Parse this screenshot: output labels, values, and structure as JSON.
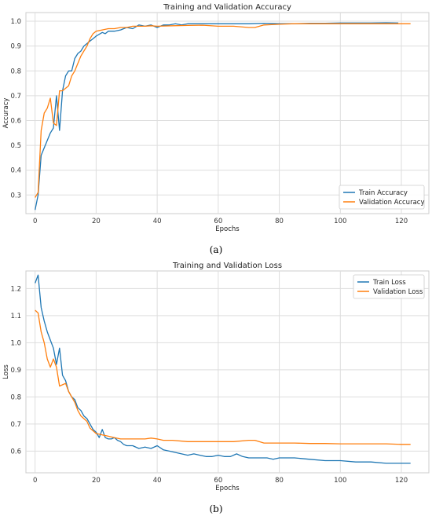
{
  "colors": {
    "train": "#1f77b4",
    "validation": "#ff7f0e",
    "grid": "#dddddd"
  },
  "chart_data": [
    {
      "type": "line",
      "title": "Training and Validation Accuracy",
      "xlabel": "Epochs",
      "ylabel": "Accuracy",
      "xlim": [
        -3,
        129
      ],
      "ylim": [
        0.225,
        1.035
      ],
      "xticks": [
        0,
        20,
        40,
        60,
        80,
        100,
        120
      ],
      "yticks": [
        0.3,
        0.4,
        0.5,
        0.6,
        0.7,
        0.8,
        0.9,
        1.0
      ],
      "ytick_labels": [
        "0.3",
        "0.4",
        "0.5",
        "0.6",
        "0.7",
        "0.8",
        "0.9",
        "1.0"
      ],
      "grid": true,
      "legend": "bottom-right",
      "caption": "(a)",
      "series": [
        {
          "name": "Train Accuracy",
          "color_key": "train",
          "points": [
            [
              0,
              0.24
            ],
            [
              1,
              0.3
            ],
            [
              2,
              0.46
            ],
            [
              3,
              0.49
            ],
            [
              4,
              0.52
            ],
            [
              5,
              0.55
            ],
            [
              6,
              0.57
            ],
            [
              7,
              0.7
            ],
            [
              8,
              0.56
            ],
            [
              9,
              0.72
            ],
            [
              10,
              0.78
            ],
            [
              11,
              0.8
            ],
            [
              12,
              0.8
            ],
            [
              13,
              0.85
            ],
            [
              14,
              0.87
            ],
            [
              15,
              0.88
            ],
            [
              16,
              0.9
            ],
            [
              17,
              0.91
            ],
            [
              18,
              0.92
            ],
            [
              19,
              0.93
            ],
            [
              20,
              0.94
            ],
            [
              22,
              0.955
            ],
            [
              23,
              0.95
            ],
            [
              24,
              0.96
            ],
            [
              26,
              0.96
            ],
            [
              28,
              0.965
            ],
            [
              30,
              0.975
            ],
            [
              32,
              0.97
            ],
            [
              34,
              0.985
            ],
            [
              36,
              0.98
            ],
            [
              38,
              0.985
            ],
            [
              40,
              0.975
            ],
            [
              42,
              0.985
            ],
            [
              44,
              0.985
            ],
            [
              46,
              0.99
            ],
            [
              48,
              0.985
            ],
            [
              50,
              0.99
            ],
            [
              55,
              0.99
            ],
            [
              60,
              0.99
            ],
            [
              65,
              0.99
            ],
            [
              70,
              0.99
            ],
            [
              75,
              0.992
            ],
            [
              80,
              0.99
            ],
            [
              85,
              0.99
            ],
            [
              90,
              0.992
            ],
            [
              95,
              0.992
            ],
            [
              100,
              0.993
            ],
            [
              105,
              0.993
            ],
            [
              110,
              0.993
            ],
            [
              115,
              0.994
            ],
            [
              119,
              0.993
            ]
          ]
        },
        {
          "name": "Validation Accuracy",
          "color_key": "validation",
          "points": [
            [
              0,
              0.29
            ],
            [
              1,
              0.31
            ],
            [
              2,
              0.56
            ],
            [
              3,
              0.63
            ],
            [
              4,
              0.65
            ],
            [
              5,
              0.69
            ],
            [
              6,
              0.59
            ],
            [
              7,
              0.58
            ],
            [
              8,
              0.72
            ],
            [
              9,
              0.72
            ],
            [
              10,
              0.73
            ],
            [
              11,
              0.74
            ],
            [
              12,
              0.78
            ],
            [
              13,
              0.8
            ],
            [
              14,
              0.83
            ],
            [
              15,
              0.86
            ],
            [
              16,
              0.88
            ],
            [
              17,
              0.9
            ],
            [
              18,
              0.93
            ],
            [
              19,
              0.95
            ],
            [
              20,
              0.96
            ],
            [
              22,
              0.965
            ],
            [
              24,
              0.97
            ],
            [
              26,
              0.97
            ],
            [
              28,
              0.975
            ],
            [
              30,
              0.975
            ],
            [
              32,
              0.98
            ],
            [
              34,
              0.98
            ],
            [
              36,
              0.98
            ],
            [
              38,
              0.982
            ],
            [
              40,
              0.98
            ],
            [
              45,
              0.982
            ],
            [
              50,
              0.983
            ],
            [
              55,
              0.984
            ],
            [
              60,
              0.98
            ],
            [
              65,
              0.98
            ],
            [
              70,
              0.975
            ],
            [
              72,
              0.975
            ],
            [
              75,
              0.985
            ],
            [
              80,
              0.988
            ],
            [
              85,
              0.99
            ],
            [
              90,
              0.99
            ],
            [
              95,
              0.99
            ],
            [
              100,
              0.99
            ],
            [
              105,
              0.99
            ],
            [
              110,
              0.99
            ],
            [
              115,
              0.99
            ],
            [
              120,
              0.99
            ],
            [
              123,
              0.99
            ]
          ]
        }
      ]
    },
    {
      "type": "line",
      "title": "Training and Validation Loss",
      "xlabel": "Epochs",
      "ylabel": "Loss",
      "xlim": [
        -3,
        129
      ],
      "ylim": [
        0.52,
        1.265
      ],
      "xticks": [
        0,
        20,
        40,
        60,
        80,
        100,
        120
      ],
      "yticks": [
        0.6,
        0.7,
        0.8,
        0.9,
        1.0,
        1.1,
        1.2
      ],
      "ytick_labels": [
        "0.6",
        "0.7",
        "0.8",
        "0.9",
        "1.0",
        "1.1",
        "1.2"
      ],
      "grid": true,
      "legend": "top-right",
      "caption": "(b)",
      "series": [
        {
          "name": "Train Loss",
          "color_key": "train",
          "points": [
            [
              0,
              1.22
            ],
            [
              1,
              1.25
            ],
            [
              2,
              1.13
            ],
            [
              3,
              1.08
            ],
            [
              4,
              1.04
            ],
            [
              5,
              1.01
            ],
            [
              6,
              0.98
            ],
            [
              7,
              0.92
            ],
            [
              8,
              0.98
            ],
            [
              9,
              0.88
            ],
            [
              10,
              0.86
            ],
            [
              11,
              0.82
            ],
            [
              12,
              0.8
            ],
            [
              13,
              0.79
            ],
            [
              14,
              0.76
            ],
            [
              15,
              0.75
            ],
            [
              16,
              0.73
            ],
            [
              17,
              0.72
            ],
            [
              18,
              0.7
            ],
            [
              19,
              0.68
            ],
            [
              20,
              0.67
            ],
            [
              21,
              0.65
            ],
            [
              22,
              0.68
            ],
            [
              23,
              0.65
            ],
            [
              24,
              0.645
            ],
            [
              25,
              0.645
            ],
            [
              26,
              0.65
            ],
            [
              27,
              0.64
            ],
            [
              28,
              0.635
            ],
            [
              29,
              0.625
            ],
            [
              30,
              0.62
            ],
            [
              32,
              0.62
            ],
            [
              34,
              0.61
            ],
            [
              36,
              0.615
            ],
            [
              38,
              0.61
            ],
            [
              40,
              0.62
            ],
            [
              42,
              0.605
            ],
            [
              44,
              0.6
            ],
            [
              46,
              0.595
            ],
            [
              48,
              0.59
            ],
            [
              50,
              0.585
            ],
            [
              52,
              0.59
            ],
            [
              54,
              0.585
            ],
            [
              56,
              0.58
            ],
            [
              58,
              0.58
            ],
            [
              60,
              0.585
            ],
            [
              62,
              0.58
            ],
            [
              64,
              0.58
            ],
            [
              66,
              0.59
            ],
            [
              68,
              0.58
            ],
            [
              70,
              0.575
            ],
            [
              72,
              0.575
            ],
            [
              74,
              0.575
            ],
            [
              76,
              0.575
            ],
            [
              78,
              0.57
            ],
            [
              80,
              0.575
            ],
            [
              85,
              0.575
            ],
            [
              90,
              0.57
            ],
            [
              95,
              0.565
            ],
            [
              100,
              0.565
            ],
            [
              105,
              0.56
            ],
            [
              110,
              0.56
            ],
            [
              115,
              0.555
            ],
            [
              120,
              0.555
            ],
            [
              123,
              0.555
            ]
          ]
        },
        {
          "name": "Validation Loss",
          "color_key": "validation",
          "points": [
            [
              0,
              1.12
            ],
            [
              1,
              1.11
            ],
            [
              2,
              1.04
            ],
            [
              3,
              1.0
            ],
            [
              4,
              0.94
            ],
            [
              5,
              0.91
            ],
            [
              6,
              0.94
            ],
            [
              7,
              0.91
            ],
            [
              8,
              0.84
            ],
            [
              9,
              0.845
            ],
            [
              10,
              0.85
            ],
            [
              11,
              0.82
            ],
            [
              12,
              0.8
            ],
            [
              13,
              0.78
            ],
            [
              14,
              0.75
            ],
            [
              15,
              0.73
            ],
            [
              16,
              0.72
            ],
            [
              17,
              0.71
            ],
            [
              18,
              0.685
            ],
            [
              19,
              0.675
            ],
            [
              20,
              0.665
            ],
            [
              22,
              0.66
            ],
            [
              24,
              0.655
            ],
            [
              26,
              0.65
            ],
            [
              28,
              0.645
            ],
            [
              30,
              0.645
            ],
            [
              32,
              0.645
            ],
            [
              34,
              0.645
            ],
            [
              36,
              0.645
            ],
            [
              38,
              0.648
            ],
            [
              40,
              0.645
            ],
            [
              42,
              0.64
            ],
            [
              45,
              0.64
            ],
            [
              50,
              0.635
            ],
            [
              55,
              0.635
            ],
            [
              60,
              0.635
            ],
            [
              65,
              0.635
            ],
            [
              70,
              0.64
            ],
            [
              72,
              0.64
            ],
            [
              75,
              0.63
            ],
            [
              80,
              0.63
            ],
            [
              85,
              0.63
            ],
            [
              90,
              0.628
            ],
            [
              95,
              0.628
            ],
            [
              100,
              0.627
            ],
            [
              105,
              0.627
            ],
            [
              110,
              0.627
            ],
            [
              115,
              0.627
            ],
            [
              120,
              0.625
            ],
            [
              123,
              0.625
            ]
          ]
        }
      ]
    }
  ]
}
